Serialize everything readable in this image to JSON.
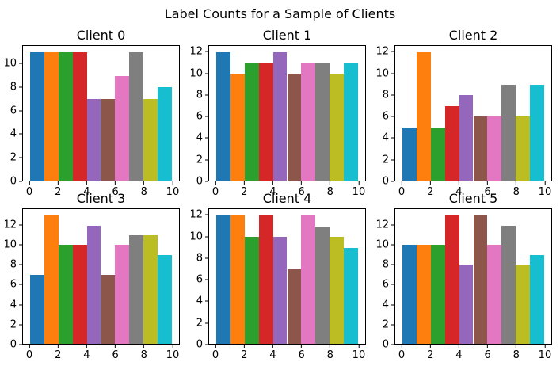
{
  "figure": {
    "suptitle": "Label Counts for a Sample of Clients",
    "background": "#ffffff",
    "spine_color": "#000000",
    "text_color": "#000000"
  },
  "chart_data": {
    "type": "bar",
    "title": "Label Counts for a Sample of Clients",
    "layout": {
      "rows": 2,
      "cols": 3,
      "grid": false,
      "legend": "none"
    },
    "x": [
      0,
      1,
      2,
      3,
      4,
      5,
      6,
      7,
      8,
      9
    ],
    "bar_width": 1,
    "bar_align": "edge",
    "xlim": [
      -0.5,
      10.5
    ],
    "xticks": [
      0,
      2,
      4,
      6,
      8,
      10
    ],
    "bar_colors": [
      "#1f77b4",
      "#ff7f0e",
      "#2ca02c",
      "#d62728",
      "#9467bd",
      "#8c564b",
      "#e377c2",
      "#7f7f7f",
      "#bcbd22",
      "#17becf"
    ],
    "subplots": [
      {
        "title": "Client 0",
        "values": [
          11,
          11,
          11,
          11,
          7,
          7,
          9,
          11,
          7,
          8
        ],
        "yticks": [
          0,
          2,
          4,
          6,
          8,
          10
        ],
        "ylim": [
          0,
          11.55
        ]
      },
      {
        "title": "Client 1",
        "values": [
          12,
          10,
          11,
          11,
          12,
          10,
          11,
          11,
          10,
          11
        ],
        "yticks": [
          0,
          2,
          4,
          6,
          8,
          10,
          12
        ],
        "ylim": [
          0,
          12.6
        ]
      },
      {
        "title": "Client 2",
        "values": [
          5,
          12,
          5,
          7,
          8,
          6,
          6,
          9,
          6,
          9
        ],
        "yticks": [
          0,
          2,
          4,
          6,
          8,
          10,
          12
        ],
        "ylim": [
          0,
          12.6
        ]
      },
      {
        "title": "Client 3",
        "values": [
          7,
          13,
          10,
          10,
          12,
          7,
          10,
          11,
          11,
          9
        ],
        "yticks": [
          0,
          2,
          4,
          6,
          8,
          10,
          12
        ],
        "ylim": [
          0,
          13.65
        ]
      },
      {
        "title": "Client 4",
        "values": [
          12,
          12,
          10,
          12,
          10,
          7,
          12,
          11,
          10,
          9
        ],
        "yticks": [
          0,
          2,
          4,
          6,
          8,
          10,
          12
        ],
        "ylim": [
          0,
          12.6
        ]
      },
      {
        "title": "Client 5",
        "values": [
          10,
          10,
          10,
          13,
          8,
          13,
          10,
          12,
          8,
          9
        ],
        "yticks": [
          0,
          2,
          4,
          6,
          8,
          10,
          12
        ],
        "ylim": [
          0,
          13.65
        ]
      }
    ]
  }
}
